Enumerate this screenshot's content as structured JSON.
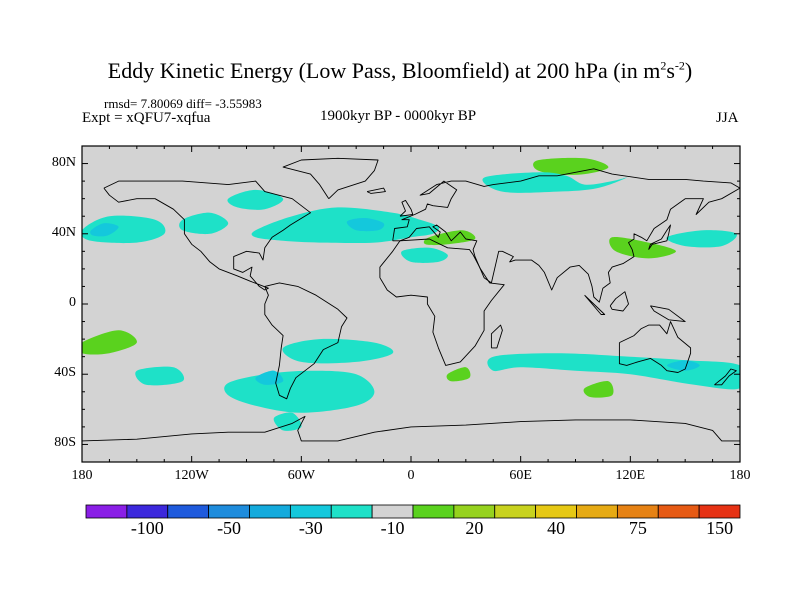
{
  "title": {
    "main": "Eddy Kinetic Energy (Low Pass, Bloomfield) at 200 hPa (in m",
    "exp1": "2",
    "unit2": "s",
    "exp2": "-2",
    "close": ")"
  },
  "stats": "rmsd= 7.80069 diff= -3.55983",
  "expt": "Expt = xQFU7-xqfua",
  "period": "1900kyr BP - 0000kyr BP",
  "season": "JJA",
  "colors": {
    "background_land_sea": "#d3d3d3",
    "coastline": "#000000"
  },
  "chart_data": {
    "type": "heatmap",
    "projection": "cylindrical-equidistant",
    "variable": "Eddy kinetic energy difference (low pass, Bloomfield) at 200 hPa",
    "units": "m2 s-2",
    "lon_range": [
      -180,
      180
    ],
    "lat_range": [
      -90,
      90
    ],
    "x_ticks": [
      {
        "value": -180,
        "label": "180"
      },
      {
        "value": -120,
        "label": "120W"
      },
      {
        "value": -60,
        "label": "60W"
      },
      {
        "value": 0,
        "label": "0"
      },
      {
        "value": 60,
        "label": "60E"
      },
      {
        "value": 120,
        "label": "120E"
      },
      {
        "value": 180,
        "label": "180"
      }
    ],
    "y_ticks": [
      {
        "value": 80,
        "label": "80N"
      },
      {
        "value": 40,
        "label": "40N"
      },
      {
        "value": 0,
        "label": "0"
      },
      {
        "value": -40,
        "label": "40S"
      },
      {
        "value": -80,
        "label": "80S"
      }
    ],
    "colorbar": {
      "bins": [
        {
          "color": "#8a1ee6"
        },
        {
          "color": "#3c28dc"
        },
        {
          "color": "#1e5adc"
        },
        {
          "color": "#1e8cdc"
        },
        {
          "color": "#14aadc"
        },
        {
          "color": "#14c8dc"
        },
        {
          "color": "#1ee1c8"
        },
        {
          "color": "#d3d3d3"
        },
        {
          "color": "#5ad21e"
        },
        {
          "color": "#96d21e"
        },
        {
          "color": "#c8d21e"
        },
        {
          "color": "#e6c814"
        },
        {
          "color": "#e6aa14"
        },
        {
          "color": "#e68214"
        },
        {
          "color": "#e65a14"
        },
        {
          "color": "#e63214"
        }
      ],
      "labels": [
        {
          "value": "-100",
          "boundary": 2
        },
        {
          "value": "-50",
          "boundary": 4
        },
        {
          "value": "-30",
          "boundary": 6
        },
        {
          "value": "-10",
          "boundary": 8
        },
        {
          "value": "20",
          "boundary": 10
        },
        {
          "value": "40",
          "boundary": 12
        },
        {
          "value": "75",
          "boundary": 14
        },
        {
          "value": "150",
          "boundary": 16
        }
      ]
    },
    "regions": [
      {
        "name": "n-atlantic-negative",
        "level": -10,
        "color": "#1ee1c8",
        "points": [
          [
            -85,
            42
          ],
          [
            -65,
            50
          ],
          [
            -40,
            55
          ],
          [
            -10,
            52
          ],
          [
            5,
            48
          ],
          [
            15,
            44
          ],
          [
            12,
            40
          ],
          [
            0,
            38
          ],
          [
            -20,
            35
          ],
          [
            -50,
            35
          ],
          [
            -70,
            36
          ],
          [
            -85,
            38
          ]
        ]
      },
      {
        "name": "n-atlantic-core",
        "level": -30,
        "color": "#14c8dc",
        "points": [
          [
            -35,
            47
          ],
          [
            -25,
            49
          ],
          [
            -15,
            46
          ],
          [
            -18,
            42
          ],
          [
            -30,
            42
          ]
        ]
      },
      {
        "name": "n-pacific-west-negative",
        "level": -10,
        "color": "#1ee1c8",
        "points": [
          [
            -180,
            42
          ],
          [
            -165,
            50
          ],
          [
            -140,
            48
          ],
          [
            -135,
            40
          ],
          [
            -150,
            35
          ],
          [
            -175,
            36
          ]
        ]
      },
      {
        "name": "n-pacific-west-core",
        "level": -30,
        "color": "#14c8dc",
        "points": [
          [
            -175,
            42
          ],
          [
            -168,
            46
          ],
          [
            -160,
            44
          ],
          [
            -166,
            39
          ],
          [
            -174,
            39
          ]
        ]
      },
      {
        "name": "n-pacific-east-negative",
        "level": -10,
        "color": "#1ee1c8",
        "points": [
          [
            -125,
            48
          ],
          [
            -110,
            52
          ],
          [
            -100,
            46
          ],
          [
            -110,
            40
          ],
          [
            -125,
            42
          ]
        ]
      },
      {
        "name": "n-america-interior-negative",
        "level": -10,
        "color": "#1ee1c8",
        "points": [
          [
            -100,
            60
          ],
          [
            -85,
            65
          ],
          [
            -70,
            60
          ],
          [
            -80,
            54
          ],
          [
            -95,
            55
          ]
        ]
      },
      {
        "name": "n-africa-negative",
        "level": -10,
        "color": "#1ee1c8",
        "points": [
          [
            -5,
            30
          ],
          [
            10,
            32
          ],
          [
            20,
            28
          ],
          [
            15,
            24
          ],
          [
            0,
            24
          ]
        ]
      },
      {
        "name": "nw-pacific-negative",
        "level": -10,
        "color": "#1ee1c8",
        "points": [
          [
            140,
            38
          ],
          [
            160,
            42
          ],
          [
            178,
            40
          ],
          [
            170,
            33
          ],
          [
            150,
            33
          ]
        ]
      },
      {
        "name": "siberia-positive",
        "level": 20,
        "color": "#5ad21e",
        "points": [
          [
            70,
            82
          ],
          [
            95,
            83
          ],
          [
            108,
            78
          ],
          [
            95,
            74
          ],
          [
            78,
            74
          ],
          [
            68,
            77
          ]
        ]
      },
      {
        "name": "siberia-ring",
        "level": -10,
        "color": "#1ee1c8",
        "points": [
          [
            40,
            72
          ],
          [
            70,
            75
          ],
          [
            85,
            73
          ],
          [
            95,
            68
          ],
          [
            110,
            70
          ],
          [
            118,
            72
          ],
          [
            102,
            66
          ],
          [
            80,
            64
          ],
          [
            50,
            64
          ]
        ]
      },
      {
        "name": "mediterranean-positive",
        "level": 20,
        "color": "#5ad21e",
        "points": [
          [
            10,
            38
          ],
          [
            28,
            42
          ],
          [
            35,
            37
          ],
          [
            20,
            34
          ],
          [
            8,
            34
          ]
        ]
      },
      {
        "name": "east-asia-positive",
        "level": 20,
        "color": "#5ad21e",
        "points": [
          [
            110,
            38
          ],
          [
            130,
            35
          ],
          [
            145,
            30
          ],
          [
            130,
            26
          ],
          [
            112,
            30
          ]
        ]
      },
      {
        "name": "s-pacific-positive",
        "level": 20,
        "color": "#5ad21e",
        "points": [
          [
            -180,
            -22
          ],
          [
            -160,
            -15
          ],
          [
            -150,
            -22
          ],
          [
            -165,
            -28
          ],
          [
            -180,
            -28
          ]
        ]
      },
      {
        "name": "s-indian-positive",
        "level": 20,
        "color": "#5ad21e",
        "points": [
          [
            95,
            -48
          ],
          [
            108,
            -44
          ],
          [
            110,
            -52
          ],
          [
            98,
            -53
          ]
        ]
      },
      {
        "name": "s-africa-positive",
        "level": 20,
        "color": "#5ad21e",
        "points": [
          [
            20,
            -40
          ],
          [
            30,
            -36
          ],
          [
            32,
            -42
          ],
          [
            22,
            -44
          ]
        ]
      },
      {
        "name": "s-atlantic-negative",
        "level": -10,
        "color": "#1ee1c8",
        "points": [
          [
            -70,
            -25
          ],
          [
            -50,
            -20
          ],
          [
            -20,
            -22
          ],
          [
            -10,
            -28
          ],
          [
            -30,
            -33
          ],
          [
            -60,
            -33
          ]
        ]
      },
      {
        "name": "s-indian-band-negative",
        "level": -10,
        "color": "#1ee1c8",
        "points": [
          [
            45,
            -30
          ],
          [
            80,
            -28
          ],
          [
            120,
            -30
          ],
          [
            150,
            -32
          ],
          [
            180,
            -35
          ],
          [
            180,
            -48
          ],
          [
            155,
            -46
          ],
          [
            120,
            -40
          ],
          [
            90,
            -38
          ],
          [
            60,
            -36
          ],
          [
            45,
            -38
          ]
        ]
      },
      {
        "name": "australia-core",
        "level": -30,
        "color": "#14c8dc",
        "points": [
          [
            140,
            -35
          ],
          [
            150,
            -32
          ],
          [
            158,
            -35
          ],
          [
            150,
            -38
          ]
        ]
      },
      {
        "name": "s-america-south-negative",
        "level": -10,
        "color": "#1ee1c8",
        "points": [
          [
            -100,
            -45
          ],
          [
            -80,
            -40
          ],
          [
            -55,
            -38
          ],
          [
            -30,
            -40
          ],
          [
            -20,
            -50
          ],
          [
            -30,
            -58
          ],
          [
            -60,
            -62
          ],
          [
            -85,
            -58
          ],
          [
            -100,
            -52
          ]
        ]
      },
      {
        "name": "chile-core",
        "level": -30,
        "color": "#14c8dc",
        "points": [
          [
            -85,
            -42
          ],
          [
            -75,
            -38
          ],
          [
            -70,
            -44
          ],
          [
            -80,
            -46
          ]
        ]
      },
      {
        "name": "s-pacific-east-negative",
        "level": -10,
        "color": "#1ee1c8",
        "points": [
          [
            -150,
            -38
          ],
          [
            -130,
            -36
          ],
          [
            -125,
            -44
          ],
          [
            -145,
            -46
          ]
        ]
      },
      {
        "name": "antarctic-negative",
        "level": -10,
        "color": "#1ee1c8",
        "points": [
          [
            -75,
            -65
          ],
          [
            -65,
            -62
          ],
          [
            -60,
            -70
          ],
          [
            -70,
            -72
          ]
        ]
      }
    ]
  }
}
